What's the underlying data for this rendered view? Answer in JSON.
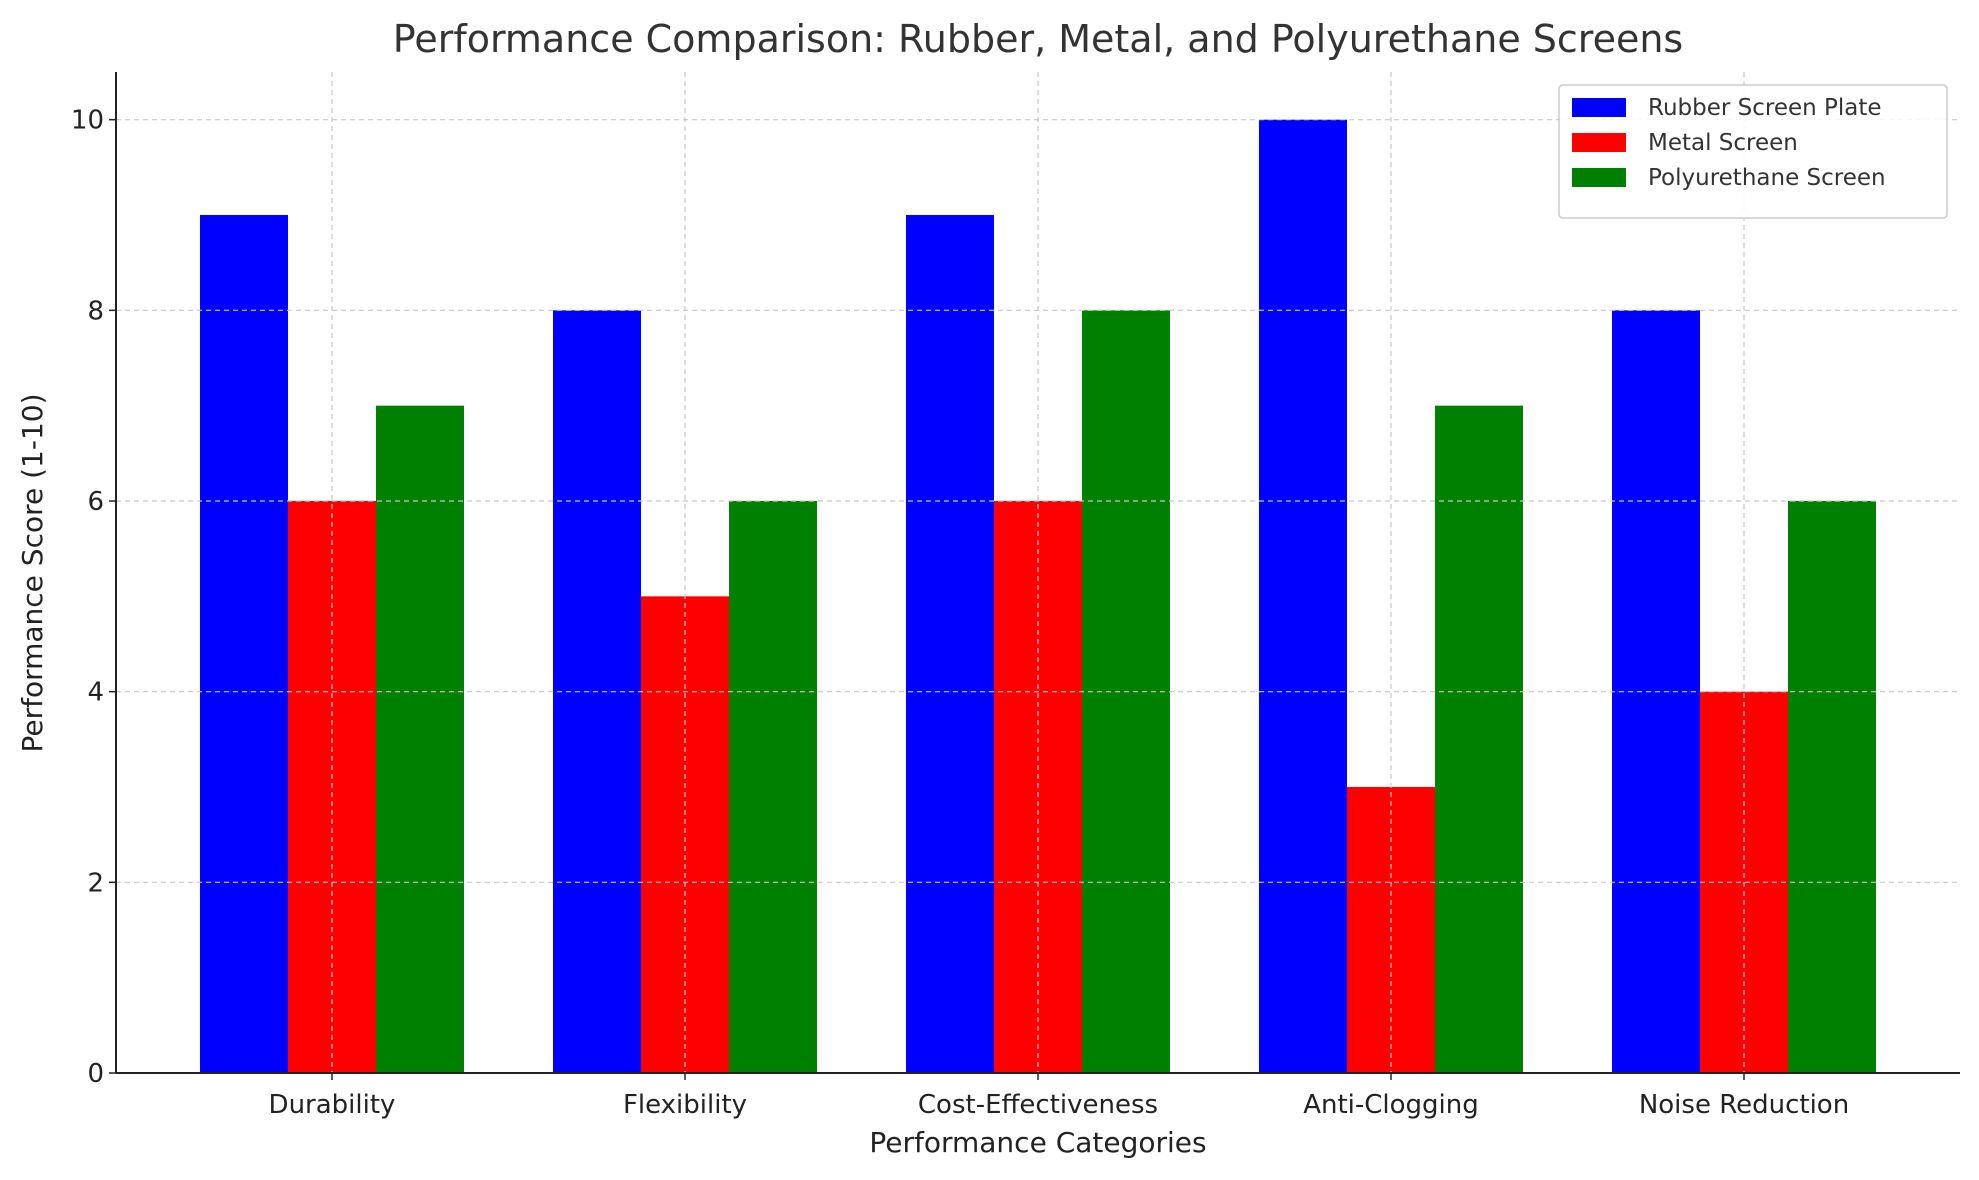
{
  "chart_data": {
    "type": "bar",
    "title": "Performance Comparison: Rubber, Metal, and Polyurethane Screens",
    "xlabel": "Performance Categories",
    "ylabel": "Performance Score (1-10)",
    "categories": [
      "Durability",
      "Flexibility",
      "Cost-Effectiveness",
      "Anti-Clogging",
      "Noise Reduction"
    ],
    "series": [
      {
        "name": "Rubber Screen Plate",
        "color": "#0000ff",
        "values": [
          9,
          8,
          9,
          10,
          8
        ]
      },
      {
        "name": "Metal Screen",
        "color": "#ff0000",
        "values": [
          6,
          5,
          6,
          3,
          4
        ]
      },
      {
        "name": "Polyurethane Screen",
        "color": "#008000",
        "values": [
          7,
          6,
          8,
          7,
          6
        ]
      }
    ],
    "ylim": [
      0,
      10.5
    ],
    "yticks": [
      "0",
      "2",
      "4",
      "6",
      "8",
      "10"
    ],
    "grid": true,
    "legend": "top-right"
  }
}
